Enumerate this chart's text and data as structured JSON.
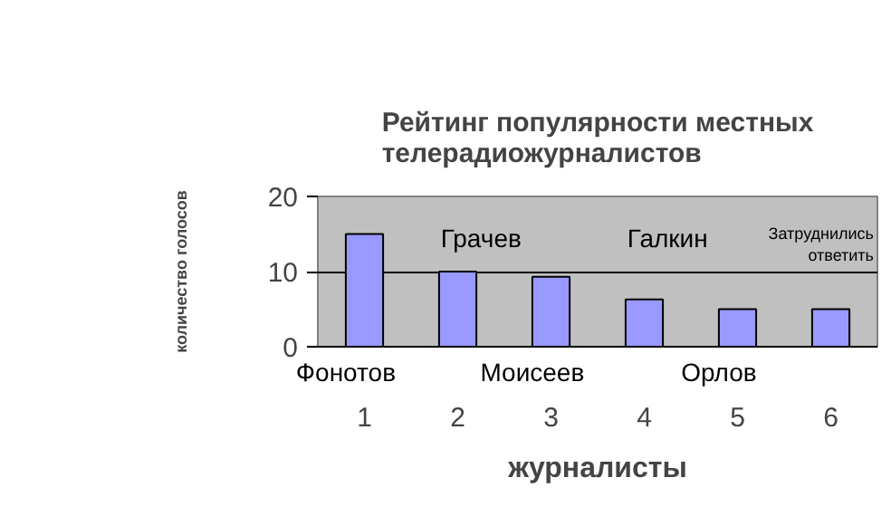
{
  "chart_data": {
    "type": "bar",
    "title": "Рейтинг популярности местных\nтелерадиожурналистов",
    "xlabel": "журналисты",
    "ylabel": "количество голосов",
    "categories": [
      "1",
      "2",
      "3",
      "4",
      "5",
      "6"
    ],
    "values": [
      15,
      10,
      9.3,
      6.3,
      5,
      5
    ],
    "color": "#9999ff",
    "ylim": [
      0,
      20
    ],
    "yticks": [
      0,
      10,
      20
    ],
    "grid": "y",
    "annotations": [
      "Фонотов",
      "Грачев",
      "Моисеев",
      "Галкин",
      "Орлов",
      "Затруднились\nответить"
    ]
  }
}
